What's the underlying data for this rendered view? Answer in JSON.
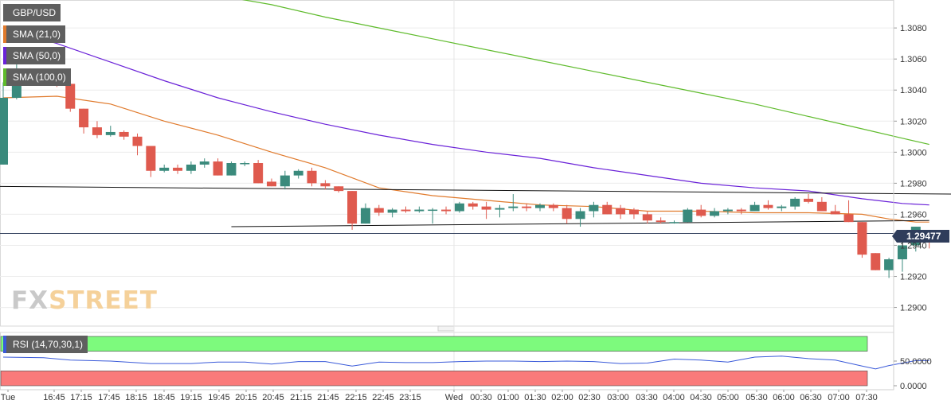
{
  "legend": {
    "symbol": "GBP/USD",
    "sma21": "SMA (21,0)",
    "sma50": "SMA (50,0)",
    "sma100": "SMA (100,0)",
    "rsi": "RSI (14,70,30,1)"
  },
  "colors": {
    "bull": "#3a8a7c",
    "bear": "#df5a4e",
    "sma21": "#e07a2c",
    "sma50": "#6a22d8",
    "sma100": "#5fbb2c",
    "rsi_line": "#3a5ad9",
    "rsi_overbought": "#7dfa7d",
    "rsi_oversold": "#fa7a7a",
    "current_price_line": "#2f3d5b"
  },
  "watermark": {
    "fx": "FX",
    "street": "STREET"
  },
  "current_price": "1.29477",
  "chart_data": {
    "type": "candlestick",
    "price_axis": {
      "ylim": [
        1.2888,
        1.3098
      ],
      "ticks": [
        "1.3080",
        "1.3060",
        "1.3040",
        "1.3020",
        "1.3000",
        "1.2980",
        "1.2960",
        "1.2940",
        "1.2920",
        "1.2900"
      ]
    },
    "rsi_axis": {
      "ylim": [
        0,
        100
      ],
      "ticks": [
        "50.0000",
        "0.0000"
      ],
      "overbought": 70,
      "oversold": 30
    },
    "time_labels": [
      "Tue",
      "16:45",
      "17:15",
      "17:45",
      "18:15",
      "18:45",
      "19:15",
      "19:45",
      "20:15",
      "20:45",
      "21:15",
      "21:45",
      "22:15",
      "22:45",
      "23:15",
      "Wed",
      "00:30",
      "01:00",
      "01:30",
      "02:00",
      "02:30",
      "03:00",
      "03:30",
      "04:00",
      "04:30",
      "05:00",
      "05:30",
      "06:00",
      "06:30",
      "07:00",
      "07:30"
    ],
    "candles": [
      [
        1.2992,
        1.3045,
        1.2992,
        1.3035
      ],
      [
        1.3035,
        1.3057,
        1.3034,
        1.3052
      ],
      [
        1.3052,
        1.3054,
        1.3044,
        1.3047
      ],
      [
        1.3047,
        1.305,
        1.3044,
        1.3048
      ],
      [
        1.3048,
        1.3049,
        1.3042,
        1.3044
      ],
      [
        1.3044,
        1.3048,
        1.3026,
        1.3028
      ],
      [
        1.3028,
        1.3028,
        1.3012,
        1.3016
      ],
      [
        1.3016,
        1.302,
        1.3009,
        1.3011
      ],
      [
        1.3011,
        1.3017,
        1.301,
        1.3013
      ],
      [
        1.3013,
        1.3014,
        1.3008,
        1.301
      ],
      [
        1.301,
        1.3012,
        1.2998,
        1.3004
      ],
      [
        1.3004,
        1.3004,
        1.2984,
        1.2988
      ],
      [
        1.2988,
        1.2992,
        1.2987,
        1.299
      ],
      [
        1.299,
        1.2992,
        1.2986,
        1.2988
      ],
      [
        1.2988,
        1.2994,
        1.2986,
        1.2992
      ],
      [
        1.2992,
        1.2996,
        1.299,
        1.2994
      ],
      [
        1.2994,
        1.2996,
        1.2985,
        1.2985
      ],
      [
        1.2985,
        1.2994,
        1.2985,
        1.2993
      ],
      [
        1.2993,
        1.2994,
        1.2991,
        1.2993
      ],
      [
        1.2993,
        1.2995,
        1.298,
        1.298
      ],
      [
        1.2981,
        1.2983,
        1.2978,
        1.2978
      ],
      [
        1.2978,
        1.2988,
        1.2976,
        1.2985
      ],
      [
        1.2985,
        1.2989,
        1.2983,
        1.2988
      ],
      [
        1.2988,
        1.299,
        1.2978,
        1.298
      ],
      [
        1.298,
        1.2982,
        1.2976,
        1.2978
      ],
      [
        1.2978,
        1.2978,
        1.2974,
        1.2975
      ],
      [
        1.2975,
        1.2975,
        1.295,
        1.2954
      ],
      [
        1.2954,
        1.2967,
        1.2954,
        1.2964
      ],
      [
        1.2964,
        1.2966,
        1.2959,
        1.2961
      ],
      [
        1.2961,
        1.2964,
        1.2958,
        1.2963
      ],
      [
        1.2963,
        1.2965,
        1.2961,
        1.2962
      ],
      [
        1.2962,
        1.2965,
        1.2961,
        1.2963
      ],
      [
        1.2963,
        1.2964,
        1.2954,
        1.2963
      ],
      [
        1.2963,
        1.2965,
        1.296,
        1.2962
      ],
      [
        1.2962,
        1.2968,
        1.2961,
        1.2967
      ],
      [
        1.2967,
        1.2968,
        1.2963,
        1.2965
      ],
      [
        1.2965,
        1.2968,
        1.2957,
        1.2963
      ],
      [
        1.2963,
        1.2966,
        1.2958,
        1.2964
      ],
      [
        1.2964,
        1.2973,
        1.2962,
        1.2965
      ],
      [
        1.2965,
        1.2967,
        1.2962,
        1.2964
      ],
      [
        1.2964,
        1.2967,
        1.2962,
        1.2966
      ],
      [
        1.2966,
        1.2967,
        1.2962,
        1.2964
      ],
      [
        1.2964,
        1.2966,
        1.2954,
        1.2957
      ],
      [
        1.2957,
        1.2964,
        1.2952,
        1.2962
      ],
      [
        1.2962,
        1.2968,
        1.2958,
        1.2966
      ],
      [
        1.2966,
        1.2968,
        1.296,
        1.296
      ],
      [
        1.2964,
        1.2966,
        1.2957,
        1.296
      ],
      [
        1.2963,
        1.2964,
        1.2957,
        1.296
      ],
      [
        1.296,
        1.2962,
        1.2954,
        1.2956
      ],
      [
        1.2956,
        1.2958,
        1.2954,
        1.2955
      ],
      [
        1.2955,
        1.2956,
        1.2954,
        1.2955
      ],
      [
        1.2955,
        1.2964,
        1.2955,
        1.2963
      ],
      [
        1.2963,
        1.2966,
        1.2958,
        1.2959
      ],
      [
        1.2959,
        1.2964,
        1.2958,
        1.2962
      ],
      [
        1.2962,
        1.2964,
        1.296,
        1.2963
      ],
      [
        1.2963,
        1.2964,
        1.296,
        1.2962
      ],
      [
        1.2962,
        1.2968,
        1.2962,
        1.2966
      ],
      [
        1.2966,
        1.2969,
        1.2963,
        1.2964
      ],
      [
        1.2964,
        1.2966,
        1.2962,
        1.2965
      ],
      [
        1.2965,
        1.2971,
        1.2963,
        1.297
      ],
      [
        1.297,
        1.2973,
        1.2967,
        1.2968
      ],
      [
        1.2968,
        1.2971,
        1.2962,
        1.2962
      ],
      [
        1.2962,
        1.2966,
        1.296,
        1.296
      ],
      [
        1.296,
        1.2969,
        1.2955,
        1.2955
      ],
      [
        1.2955,
        1.2955,
        1.2932,
        1.2934
      ],
      [
        1.2935,
        1.2935,
        1.2924,
        1.2924
      ],
      [
        1.2924,
        1.2932,
        1.2919,
        1.2931
      ],
      [
        1.2931,
        1.2942,
        1.2923,
        1.294
      ],
      [
        1.294,
        1.2952,
        1.2936,
        1.2952
      ],
      [
        1.2948,
        1.295,
        1.2938,
        1.2946
      ]
    ],
    "sma21": [
      [
        0,
        1.3035
      ],
      [
        4,
        1.3036
      ],
      [
        8,
        1.3031
      ],
      [
        12,
        1.302
      ],
      [
        16,
        1.3011
      ],
      [
        20,
        1.3
      ],
      [
        24,
        1.299
      ],
      [
        28,
        1.2977
      ],
      [
        32,
        1.2972
      ],
      [
        36,
        1.2969
      ],
      [
        40,
        1.2966
      ],
      [
        44,
        1.2965
      ],
      [
        48,
        1.2962
      ],
      [
        52,
        1.2962
      ],
      [
        56,
        1.2961
      ],
      [
        60,
        1.2961
      ],
      [
        64,
        1.296
      ],
      [
        66,
        1.2957
      ],
      [
        68,
        1.2955
      ],
      [
        69,
        1.2955
      ]
    ],
    "sma50": [
      [
        0,
        1.308
      ],
      [
        4,
        1.307
      ],
      [
        8,
        1.3058
      ],
      [
        12,
        1.3046
      ],
      [
        16,
        1.3035
      ],
      [
        20,
        1.3026
      ],
      [
        24,
        1.3018
      ],
      [
        28,
        1.3011
      ],
      [
        32,
        1.3005
      ],
      [
        36,
        1.3
      ],
      [
        40,
        1.2996
      ],
      [
        44,
        1.299
      ],
      [
        48,
        1.2985
      ],
      [
        52,
        1.298
      ],
      [
        56,
        1.2977
      ],
      [
        60,
        1.2975
      ],
      [
        64,
        1.297
      ],
      [
        67,
        1.2967
      ],
      [
        69,
        1.2966
      ]
    ],
    "sma100": [
      [
        16,
        1.3101
      ],
      [
        20,
        1.3095
      ],
      [
        24,
        1.3087
      ],
      [
        28,
        1.308
      ],
      [
        32,
        1.3073
      ],
      [
        36,
        1.3066
      ],
      [
        40,
        1.3059
      ],
      [
        44,
        1.3052
      ],
      [
        48,
        1.3045
      ],
      [
        52,
        1.3038
      ],
      [
        56,
        1.3031
      ],
      [
        60,
        1.3023
      ],
      [
        64,
        1.3015
      ],
      [
        67,
        1.3009
      ],
      [
        69,
        1.3005
      ]
    ],
    "trendlines": [
      {
        "from": [
          -1,
          1.2978
        ],
        "to": [
          71,
          1.2973
        ]
      },
      {
        "from": [
          17,
          1.2952
        ],
        "to": [
          69,
          1.2956
        ]
      }
    ],
    "rsi": [
      [
        0,
        58
      ],
      [
        3,
        57
      ],
      [
        5,
        52
      ],
      [
        8,
        50
      ],
      [
        11,
        45
      ],
      [
        14,
        45
      ],
      [
        16,
        48
      ],
      [
        18,
        48
      ],
      [
        20,
        44
      ],
      [
        22,
        49
      ],
      [
        24,
        49
      ],
      [
        26,
        40
      ],
      [
        28,
        48
      ],
      [
        30,
        47
      ],
      [
        32,
        47
      ],
      [
        34,
        49
      ],
      [
        36,
        50
      ],
      [
        38,
        50
      ],
      [
        40,
        49
      ],
      [
        42,
        50
      ],
      [
        44,
        49
      ],
      [
        46,
        45
      ],
      [
        48,
        46
      ],
      [
        50,
        54
      ],
      [
        52,
        52
      ],
      [
        54,
        48
      ],
      [
        56,
        58
      ],
      [
        58,
        60
      ],
      [
        60,
        55
      ],
      [
        62,
        52
      ],
      [
        64,
        40
      ],
      [
        65,
        34
      ],
      [
        66,
        41
      ],
      [
        68,
        51
      ],
      [
        69,
        51
      ]
    ]
  }
}
